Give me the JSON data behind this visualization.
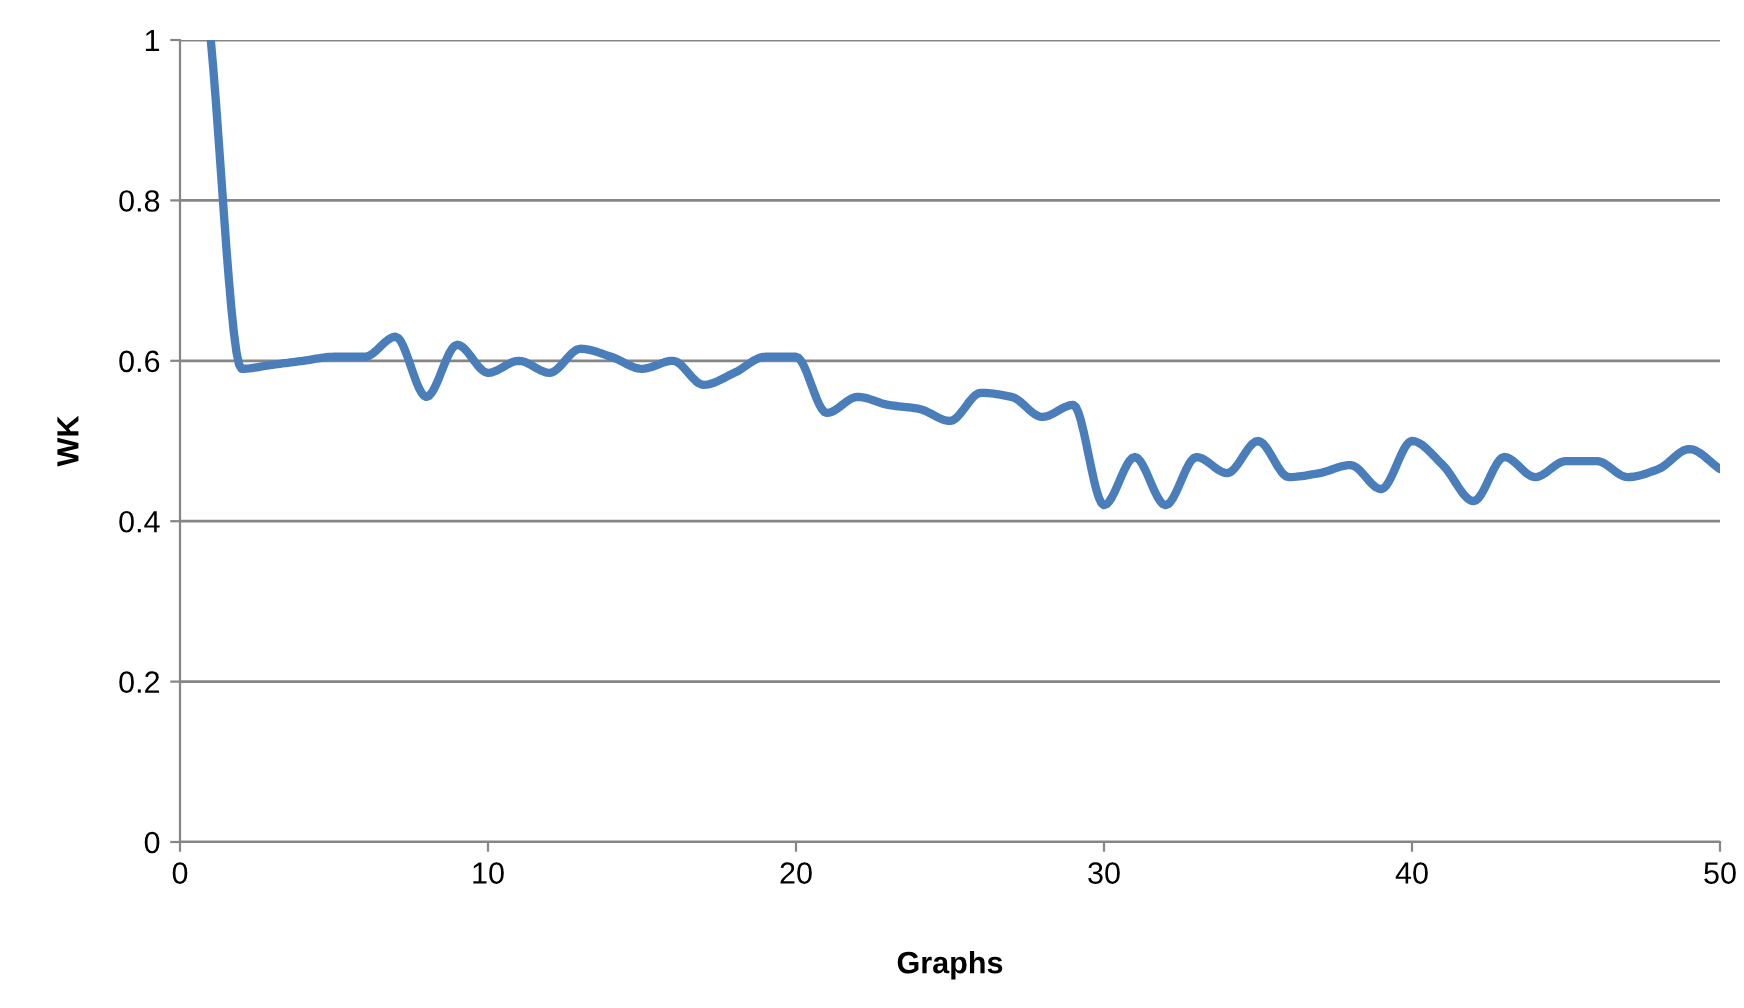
{
  "chart_data": {
    "type": "line",
    "xlabel": "Graphs",
    "ylabel": "WK",
    "x": [
      1,
      2,
      3,
      4,
      5,
      6,
      7,
      8,
      9,
      10,
      11,
      12,
      13,
      14,
      15,
      16,
      17,
      18,
      19,
      20,
      21,
      22,
      23,
      24,
      25,
      26,
      27,
      28,
      29,
      30,
      31,
      32,
      33,
      34,
      35,
      36,
      37,
      38,
      39,
      40,
      41,
      42,
      43,
      44,
      45,
      46,
      47,
      48,
      49,
      50
    ],
    "series": [
      {
        "color": "#4a7ebb",
        "values": [
          1.0,
          0.59,
          0.595,
          0.6,
          0.605,
          0.605,
          0.63,
          0.555,
          0.62,
          0.585,
          0.6,
          0.585,
          0.615,
          0.605,
          0.59,
          0.6,
          0.57,
          0.585,
          0.605,
          0.605,
          0.535,
          0.555,
          0.545,
          0.54,
          0.525,
          0.56,
          0.555,
          0.53,
          0.545,
          0.42,
          0.48,
          0.42,
          0.48,
          0.46,
          0.5,
          0.455,
          0.46,
          0.47,
          0.44,
          0.5,
          0.47,
          0.425,
          0.48,
          0.455,
          0.475,
          0.475,
          0.455,
          0.465,
          0.49,
          0.465
        ]
      }
    ],
    "xlim": [
      0,
      50
    ],
    "xticks": [
      0,
      10,
      20,
      30,
      40,
      50
    ],
    "ylim": [
      0,
      1
    ],
    "yticks": [
      0,
      0.2,
      0.4,
      0.6,
      0.8,
      1
    ],
    "grid": "y",
    "marker": "none",
    "line_style": "solid"
  }
}
